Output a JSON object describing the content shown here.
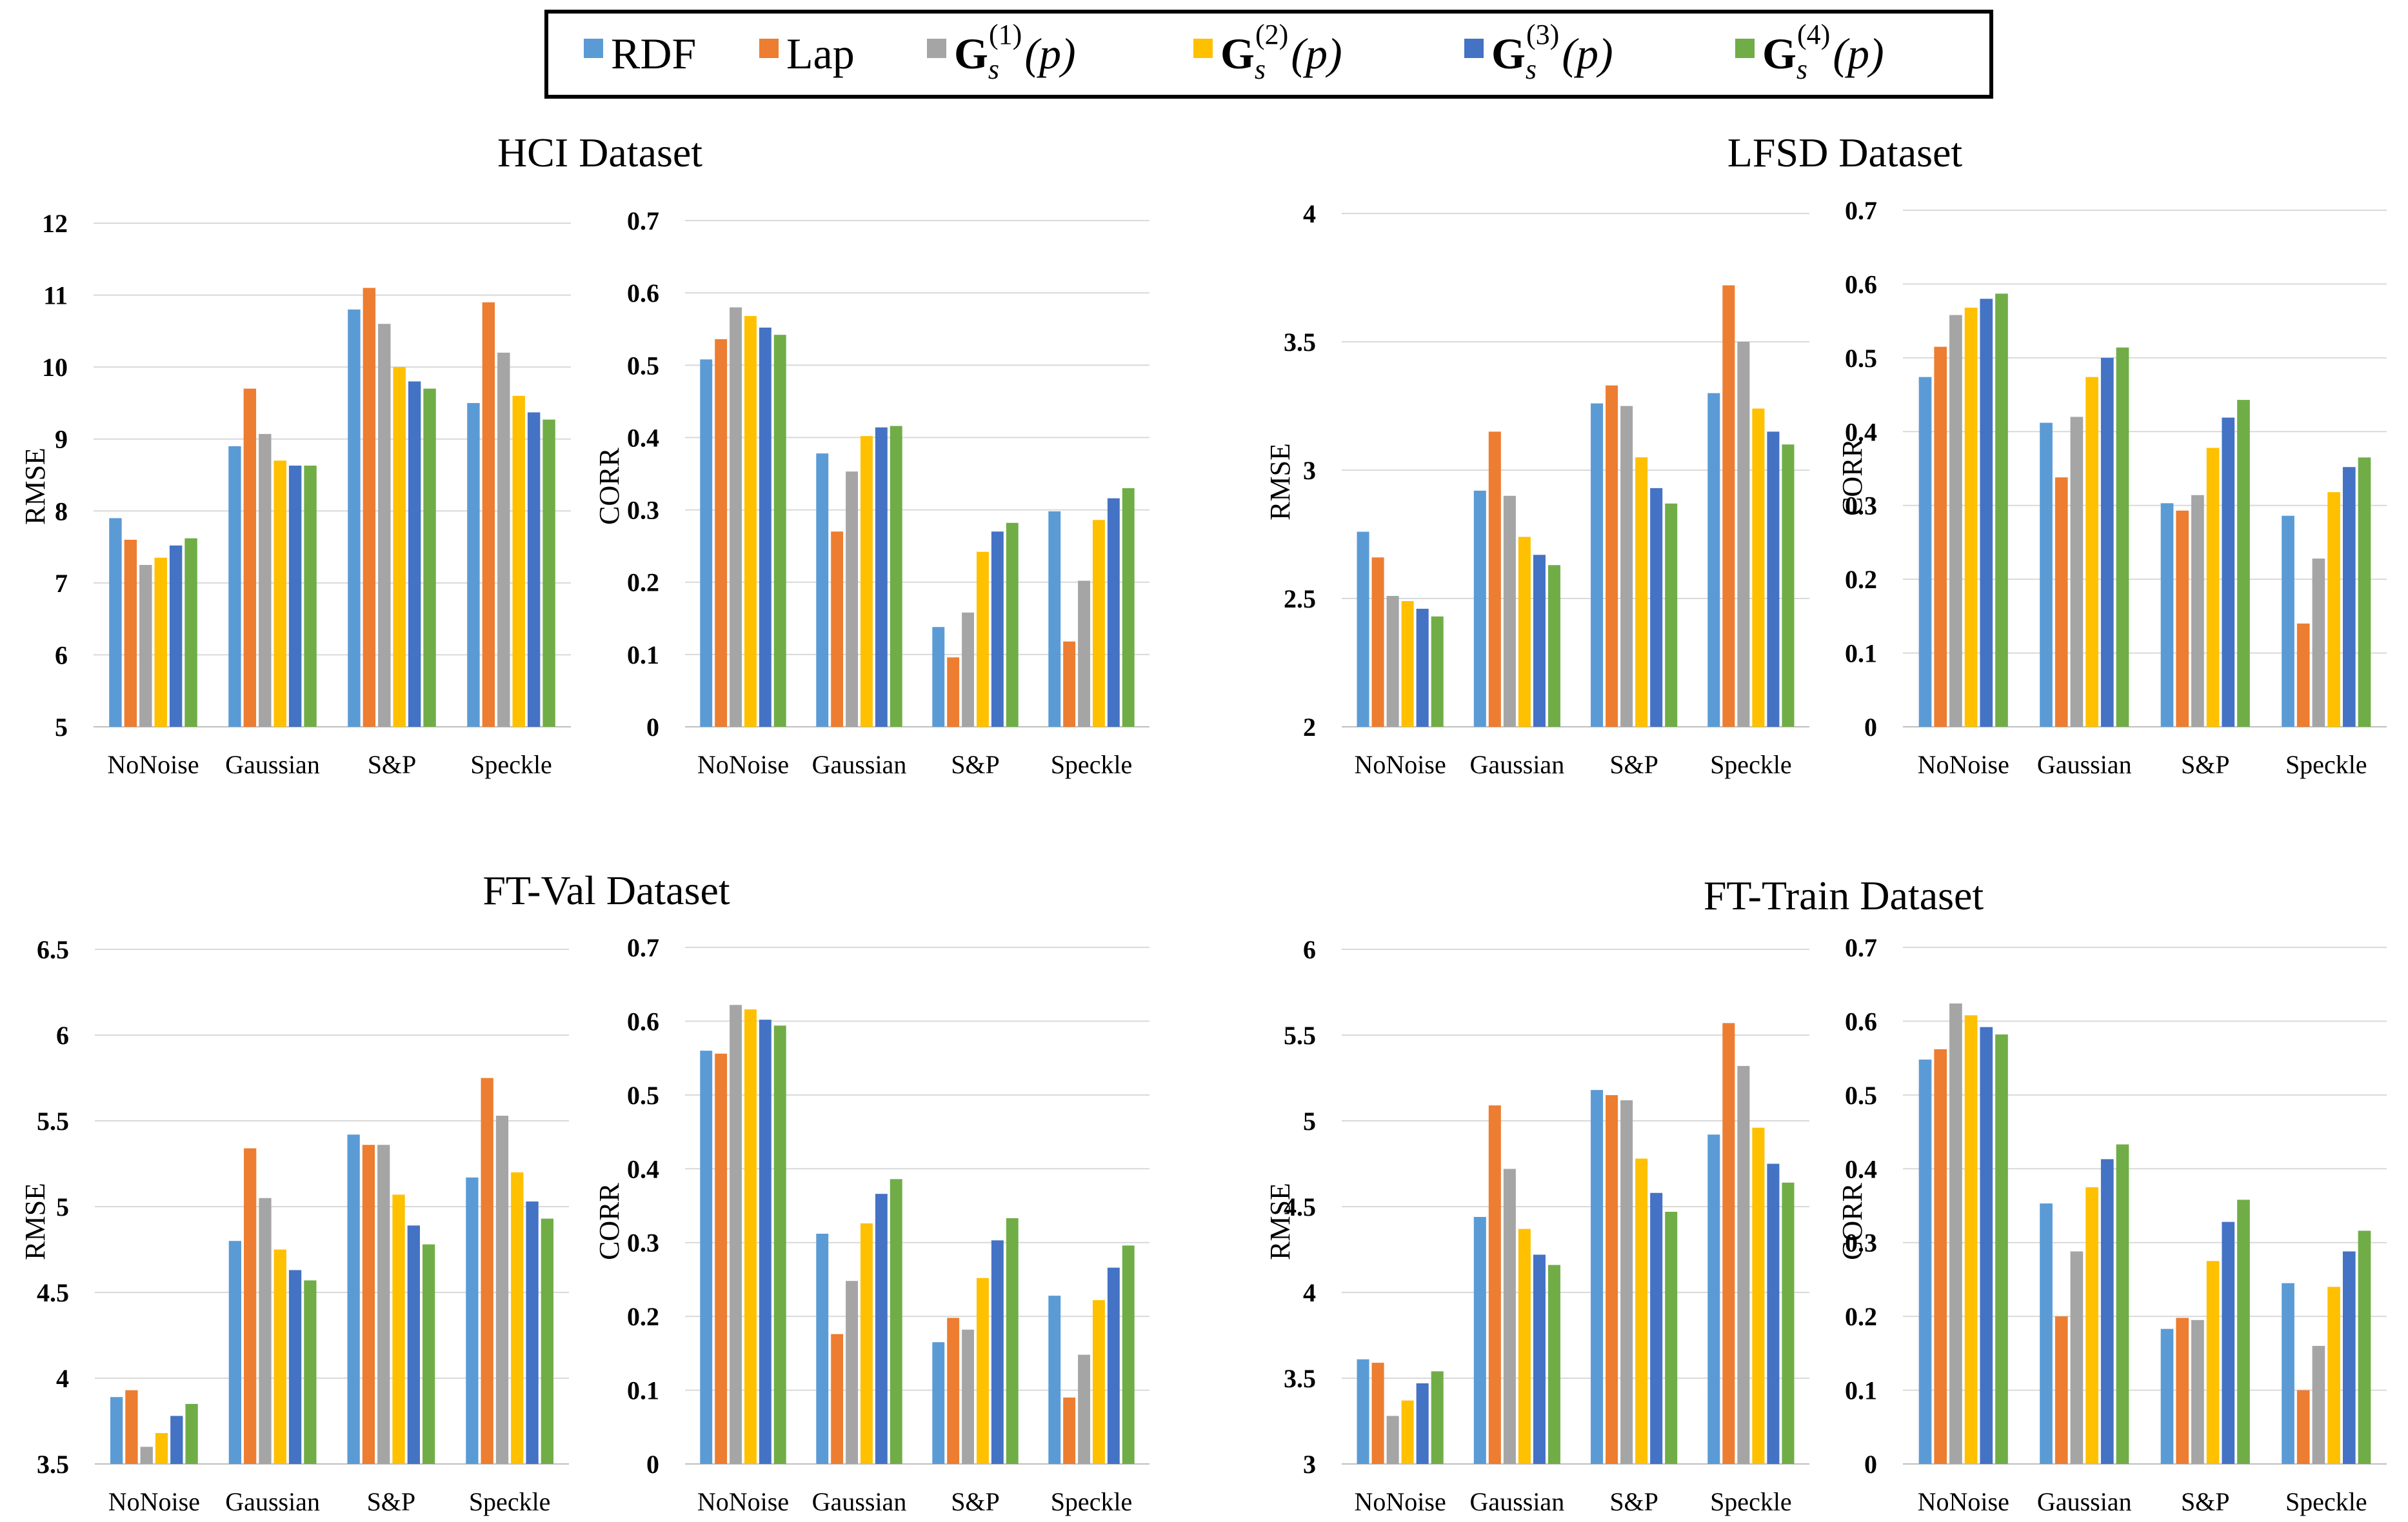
{
  "legend": {
    "entries": [
      {
        "key": "RDF",
        "label": "RDF",
        "color": "#5b9bd5"
      },
      {
        "key": "Lap",
        "label": "Lap",
        "color": "#ed7d31"
      },
      {
        "key": "G1",
        "label": "G",
        "sup": "(1)",
        "sub": "s",
        "arg": "(p)",
        "color": "#a5a5a5"
      },
      {
        "key": "G2",
        "label": "G",
        "sup": "(2)",
        "sub": "s",
        "arg": "(p)",
        "color": "#ffc000"
      },
      {
        "key": "G3",
        "label": "G",
        "sup": "(3)",
        "sub": "s",
        "arg": "(p)",
        "color": "#4472c4"
      },
      {
        "key": "G4",
        "label": "G",
        "sup": "(4)",
        "sub": "s",
        "arg": "(p)",
        "color": "#70ad47"
      }
    ]
  },
  "dataset_titles": [
    "HCI Dataset",
    "LFSD Dataset",
    "FT-Val Dataset",
    "FT-Train Dataset"
  ],
  "chart_data": [
    {
      "type": "bar",
      "dataset": "HCI Dataset",
      "ylabel": "RMSE",
      "xlabel": "",
      "categories": [
        "NoNoise",
        "Gaussian",
        "S&P",
        "Speckle"
      ],
      "ylim": [
        5,
        12
      ],
      "yticks": [
        "5",
        "6",
        "7",
        "8",
        "9",
        "10",
        "11",
        "12"
      ],
      "ystep": 1,
      "series": [
        {
          "name": "RDF",
          "values": [
            7.9,
            8.9,
            10.8,
            9.5
          ]
        },
        {
          "name": "Lap",
          "values": [
            7.6,
            9.7,
            11.1,
            10.9
          ]
        },
        {
          "name": "G1",
          "values": [
            7.25,
            9.07,
            10.6,
            10.2
          ]
        },
        {
          "name": "G2",
          "values": [
            7.35,
            8.7,
            10.0,
            9.6
          ]
        },
        {
          "name": "G3",
          "values": [
            7.52,
            8.63,
            9.8,
            9.37
          ]
        },
        {
          "name": "G4",
          "values": [
            7.62,
            8.63,
            9.7,
            9.27
          ]
        }
      ]
    },
    {
      "type": "bar",
      "dataset": "HCI Dataset",
      "ylabel": "CORR",
      "xlabel": "",
      "categories": [
        "NoNoise",
        "Gaussian",
        "S&P",
        "Speckle"
      ],
      "ylim": [
        0,
        0.7
      ],
      "yticks": [
        "0",
        "0.1",
        "0.2",
        "0.3",
        "0.4",
        "0.5",
        "0.6",
        "0.7"
      ],
      "ystep": 0.1,
      "series": [
        {
          "name": "RDF",
          "values": [
            0.508,
            0.378,
            0.138,
            0.298
          ]
        },
        {
          "name": "Lap",
          "values": [
            0.536,
            0.27,
            0.096,
            0.118
          ]
        },
        {
          "name": "G1",
          "values": [
            0.58,
            0.353,
            0.158,
            0.202
          ]
        },
        {
          "name": "G2",
          "values": [
            0.568,
            0.402,
            0.242,
            0.286
          ]
        },
        {
          "name": "G3",
          "values": [
            0.552,
            0.414,
            0.27,
            0.316
          ]
        },
        {
          "name": "G4",
          "values": [
            0.542,
            0.416,
            0.282,
            0.33
          ]
        }
      ]
    },
    {
      "type": "bar",
      "dataset": "LFSD Dataset",
      "ylabel": "RMSE",
      "xlabel": "",
      "categories": [
        "NoNoise",
        "Gaussian",
        "S&P",
        "Speckle"
      ],
      "ylim": [
        2,
        4
      ],
      "yticks": [
        "2",
        "2.5",
        "3",
        "3.5",
        "4"
      ],
      "ystep": 0.5,
      "series": [
        {
          "name": "RDF",
          "values": [
            2.76,
            2.92,
            3.26,
            3.3
          ]
        },
        {
          "name": "Lap",
          "values": [
            2.66,
            3.15,
            3.33,
            3.72
          ]
        },
        {
          "name": "G1",
          "values": [
            2.51,
            2.9,
            3.25,
            3.5
          ]
        },
        {
          "name": "G2",
          "values": [
            2.49,
            2.74,
            3.05,
            3.24
          ]
        },
        {
          "name": "G3",
          "values": [
            2.46,
            2.67,
            2.93,
            3.15
          ]
        },
        {
          "name": "G4",
          "values": [
            2.43,
            2.63,
            2.87,
            3.1
          ]
        }
      ]
    },
    {
      "type": "bar",
      "dataset": "LFSD Dataset",
      "ylabel": "CORR",
      "xlabel": "",
      "categories": [
        "NoNoise",
        "Gaussian",
        "S&P",
        "Speckle"
      ],
      "ylim": [
        0,
        0.7
      ],
      "yticks": [
        "0",
        "0.1",
        "0.2",
        "0.3",
        "0.4",
        "0.5",
        "0.6",
        "0.7"
      ],
      "ystep": 0.1,
      "series": [
        {
          "name": "RDF",
          "values": [
            0.474,
            0.412,
            0.303,
            0.286
          ]
        },
        {
          "name": "Lap",
          "values": [
            0.515,
            0.338,
            0.293,
            0.14
          ]
        },
        {
          "name": "G1",
          "values": [
            0.558,
            0.42,
            0.314,
            0.228
          ]
        },
        {
          "name": "G2",
          "values": [
            0.568,
            0.474,
            0.378,
            0.318
          ]
        },
        {
          "name": "G3",
          "values": [
            0.58,
            0.5,
            0.419,
            0.352
          ]
        },
        {
          "name": "G4",
          "values": [
            0.587,
            0.514,
            0.443,
            0.365
          ]
        }
      ]
    },
    {
      "type": "bar",
      "dataset": "FT-Val Dataset",
      "ylabel": "RMSE",
      "xlabel": "",
      "categories": [
        "NoNoise",
        "Gaussian",
        "S&P",
        "Speckle"
      ],
      "ylim": [
        3.5,
        6.5
      ],
      "yticks": [
        "3.5",
        "4",
        "4.5",
        "5",
        "5.5",
        "6",
        "6.5"
      ],
      "ystep": 0.5,
      "series": [
        {
          "name": "RDF",
          "values": [
            3.89,
            4.8,
            5.42,
            5.17
          ]
        },
        {
          "name": "Lap",
          "values": [
            3.93,
            5.34,
            5.36,
            5.75
          ]
        },
        {
          "name": "G1",
          "values": [
            3.6,
            5.05,
            5.36,
            5.53
          ]
        },
        {
          "name": "G2",
          "values": [
            3.68,
            4.75,
            5.07,
            5.2
          ]
        },
        {
          "name": "G3",
          "values": [
            3.78,
            4.63,
            4.89,
            5.03
          ]
        },
        {
          "name": "G4",
          "values": [
            3.85,
            4.57,
            4.78,
            4.93
          ]
        }
      ]
    },
    {
      "type": "bar",
      "dataset": "FT-Val Dataset",
      "ylabel": "CORR",
      "xlabel": "",
      "categories": [
        "NoNoise",
        "Gaussian",
        "S&P",
        "Speckle"
      ],
      "ylim": [
        0,
        0.7
      ],
      "yticks": [
        "0",
        "0.1",
        "0.2",
        "0.3",
        "0.4",
        "0.5",
        "0.6",
        "0.7"
      ],
      "ystep": 0.1,
      "series": [
        {
          "name": "RDF",
          "values": [
            0.56,
            0.312,
            0.165,
            0.228
          ]
        },
        {
          "name": "Lap",
          "values": [
            0.556,
            0.176,
            0.198,
            0.09
          ]
        },
        {
          "name": "G1",
          "values": [
            0.622,
            0.248,
            0.182,
            0.148
          ]
        },
        {
          "name": "G2",
          "values": [
            0.616,
            0.326,
            0.252,
            0.222
          ]
        },
        {
          "name": "G3",
          "values": [
            0.602,
            0.366,
            0.303,
            0.266
          ]
        },
        {
          "name": "G4",
          "values": [
            0.594,
            0.386,
            0.333,
            0.296
          ]
        }
      ]
    },
    {
      "type": "bar",
      "dataset": "FT-Train Dataset",
      "ylabel": "RMSE",
      "xlabel": "",
      "categories": [
        "NoNoise",
        "Gaussian",
        "S&P",
        "Speckle"
      ],
      "ylim": [
        3,
        6
      ],
      "yticks": [
        "3",
        "3.5",
        "4",
        "4.5",
        "5",
        "5.5",
        "6"
      ],
      "ystep": 0.5,
      "series": [
        {
          "name": "RDF",
          "values": [
            3.61,
            4.44,
            5.18,
            4.92
          ]
        },
        {
          "name": "Lap",
          "values": [
            3.59,
            5.09,
            5.15,
            5.57
          ]
        },
        {
          "name": "G1",
          "values": [
            3.28,
            4.72,
            5.12,
            5.32
          ]
        },
        {
          "name": "G2",
          "values": [
            3.37,
            4.37,
            4.78,
            4.96
          ]
        },
        {
          "name": "G3",
          "values": [
            3.47,
            4.22,
            4.58,
            4.75
          ]
        },
        {
          "name": "G4",
          "values": [
            3.54,
            4.16,
            4.47,
            4.64
          ]
        }
      ]
    },
    {
      "type": "bar",
      "dataset": "FT-Train Dataset",
      "ylabel": "CORR",
      "xlabel": "",
      "categories": [
        "NoNoise",
        "Gaussian",
        "S&P",
        "Speckle"
      ],
      "ylim": [
        0,
        0.7
      ],
      "yticks": [
        "0",
        "0.1",
        "0.2",
        "0.3",
        "0.4",
        "0.5",
        "0.6",
        "0.7"
      ],
      "ystep": 0.1,
      "series": [
        {
          "name": "RDF",
          "values": [
            0.548,
            0.353,
            0.183,
            0.245
          ]
        },
        {
          "name": "Lap",
          "values": [
            0.562,
            0.2,
            0.198,
            0.1
          ]
        },
        {
          "name": "G1",
          "values": [
            0.624,
            0.288,
            0.195,
            0.16
          ]
        },
        {
          "name": "G2",
          "values": [
            0.608,
            0.375,
            0.275,
            0.24
          ]
        },
        {
          "name": "G3",
          "values": [
            0.592,
            0.413,
            0.328,
            0.288
          ]
        },
        {
          "name": "G4",
          "values": [
            0.582,
            0.433,
            0.358,
            0.316
          ]
        }
      ]
    }
  ]
}
